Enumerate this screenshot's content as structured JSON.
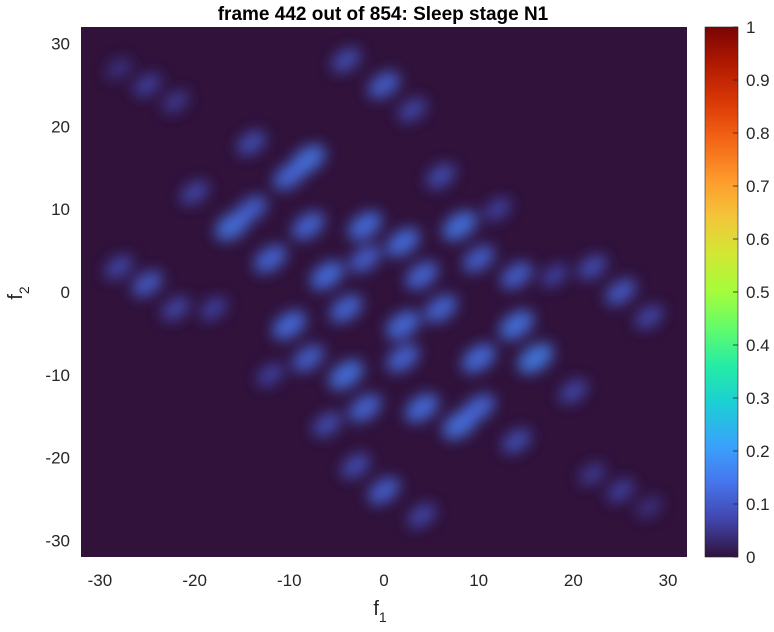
{
  "chart_data": {
    "type": "heatmap",
    "title": "frame 442 out of 854: Sleep stage N1",
    "xlabel": {
      "main": "f",
      "sub": "1"
    },
    "ylabel": {
      "main": "f",
      "sub": "2"
    },
    "xlim": [
      -32,
      32
    ],
    "ylim": [
      -32,
      32
    ],
    "xticks": [
      -30,
      -20,
      -10,
      0,
      10,
      20,
      30
    ],
    "yticks": [
      30,
      20,
      10,
      0,
      -10,
      -20,
      -30
    ],
    "colorbar": {
      "colormap": "turbo",
      "range": [
        0,
        1
      ],
      "ticks": [
        0,
        0.1,
        0.2,
        0.3,
        0.4,
        0.5,
        0.6,
        0.7,
        0.8,
        0.9,
        1
      ]
    },
    "background_color": "#30123b",
    "blobs": [
      {
        "x": -25,
        "y": 25,
        "v": 0.07
      },
      {
        "x": -22,
        "y": 23,
        "v": 0.06
      },
      {
        "x": -28,
        "y": 27,
        "v": 0.05
      },
      {
        "x": -25,
        "y": 1,
        "v": 0.11
      },
      {
        "x": -28,
        "y": 3,
        "v": 0.08
      },
      {
        "x": -22,
        "y": -2,
        "v": 0.08
      },
      {
        "x": 0,
        "y": 25,
        "v": 0.12
      },
      {
        "x": -4,
        "y": 28,
        "v": 0.09
      },
      {
        "x": 3,
        "y": 22,
        "v": 0.08
      },
      {
        "x": 25,
        "y": 0,
        "v": 0.11
      },
      {
        "x": 22,
        "y": 3,
        "v": 0.09
      },
      {
        "x": 28,
        "y": -3,
        "v": 0.08
      },
      {
        "x": 0,
        "y": -24,
        "v": 0.12
      },
      {
        "x": -3,
        "y": -21,
        "v": 0.09
      },
      {
        "x": 4,
        "y": -27,
        "v": 0.08
      },
      {
        "x": 25,
        "y": -24,
        "v": 0.07
      },
      {
        "x": 22,
        "y": -22,
        "v": 0.06
      },
      {
        "x": 28,
        "y": -26,
        "v": 0.05
      },
      {
        "x": -8,
        "y": 16,
        "v": 0.15
      },
      {
        "x": -10,
        "y": 14,
        "v": 0.13
      },
      {
        "x": -16,
        "y": 8,
        "v": 0.15
      },
      {
        "x": -14,
        "y": 10,
        "v": 0.12
      },
      {
        "x": -8,
        "y": 8,
        "v": 0.13
      },
      {
        "x": -2,
        "y": 8,
        "v": 0.14
      },
      {
        "x": 2,
        "y": 6,
        "v": 0.14
      },
      {
        "x": 8,
        "y": 8,
        "v": 0.15
      },
      {
        "x": 10,
        "y": 4,
        "v": 0.12
      },
      {
        "x": -12,
        "y": 4,
        "v": 0.13
      },
      {
        "x": -6,
        "y": 2,
        "v": 0.14
      },
      {
        "x": -2,
        "y": 4,
        "v": 0.12
      },
      {
        "x": 4,
        "y": 2,
        "v": 0.13
      },
      {
        "x": 14,
        "y": 2,
        "v": 0.12
      },
      {
        "x": -10,
        "y": -4,
        "v": 0.14
      },
      {
        "x": -4,
        "y": -2,
        "v": 0.13
      },
      {
        "x": 2,
        "y": -4,
        "v": 0.14
      },
      {
        "x": 6,
        "y": -2,
        "v": 0.13
      },
      {
        "x": 14,
        "y": -4,
        "v": 0.15
      },
      {
        "x": -8,
        "y": -8,
        "v": 0.12
      },
      {
        "x": -4,
        "y": -10,
        "v": 0.15
      },
      {
        "x": 2,
        "y": -8,
        "v": 0.13
      },
      {
        "x": 10,
        "y": -8,
        "v": 0.14
      },
      {
        "x": 16,
        "y": -8,
        "v": 0.16
      },
      {
        "x": -2,
        "y": -14,
        "v": 0.13
      },
      {
        "x": 4,
        "y": -14,
        "v": 0.14
      },
      {
        "x": 8,
        "y": -16,
        "v": 0.15
      },
      {
        "x": 10,
        "y": -14,
        "v": 0.13
      },
      {
        "x": 20,
        "y": -12,
        "v": 0.08
      },
      {
        "x": -20,
        "y": 12,
        "v": 0.08
      },
      {
        "x": -14,
        "y": 18,
        "v": 0.09
      },
      {
        "x": 14,
        "y": -18,
        "v": 0.09
      },
      {
        "x": -18,
        "y": -2,
        "v": 0.07
      },
      {
        "x": 18,
        "y": 2,
        "v": 0.07
      },
      {
        "x": 6,
        "y": 14,
        "v": 0.09
      },
      {
        "x": -6,
        "y": -16,
        "v": 0.09
      },
      {
        "x": 12,
        "y": 10,
        "v": 0.07
      },
      {
        "x": -12,
        "y": -10,
        "v": 0.07
      }
    ]
  }
}
